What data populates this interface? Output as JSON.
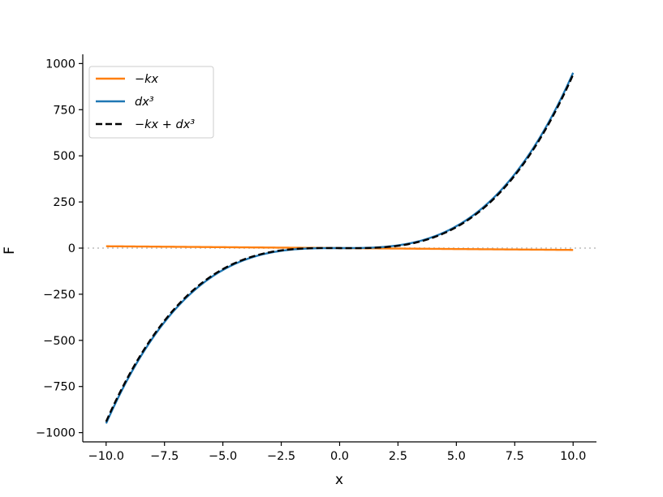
{
  "chart_data": {
    "type": "line",
    "title": "",
    "xlabel": "x",
    "ylabel": "F",
    "xlim": [
      -11,
      11
    ],
    "ylim": [
      -1050,
      1050
    ],
    "xticks": [
      -10.0,
      -7.5,
      -5.0,
      -2.5,
      0.0,
      2.5,
      5.0,
      7.5,
      10.0
    ],
    "xtick_labels": [
      "−10.0",
      "−7.5",
      "−5.0",
      "−2.5",
      "0.0",
      "2.5",
      "5.0",
      "7.5",
      "10.0"
    ],
    "yticks": [
      -1000,
      -750,
      -500,
      -250,
      0,
      250,
      500,
      750,
      1000
    ],
    "ytick_labels": [
      "−1000",
      "−750",
      "−500",
      "−250",
      "0",
      "250",
      "500",
      "750",
      "1000"
    ],
    "grid": false,
    "legend_position": "upper-left",
    "zero_line": {
      "y": 0,
      "style": "dotted",
      "color": "#cccccc"
    },
    "series": [
      {
        "name": "−kx",
        "color": "#ff7f0e",
        "style": "solid",
        "model": "linear",
        "k": 1.0,
        "x_range": [
          -10,
          10
        ]
      },
      {
        "name": "dx³",
        "color": "#1f77b4",
        "style": "solid",
        "model": "cubic",
        "d": 0.95,
        "x_range": [
          -10,
          10
        ]
      },
      {
        "name": "−kx + dx³",
        "color": "#000000",
        "style": "dashed",
        "model": "linear+cubic",
        "k": 1.0,
        "d": 0.95,
        "x_range": [
          -10,
          10
        ]
      }
    ]
  }
}
